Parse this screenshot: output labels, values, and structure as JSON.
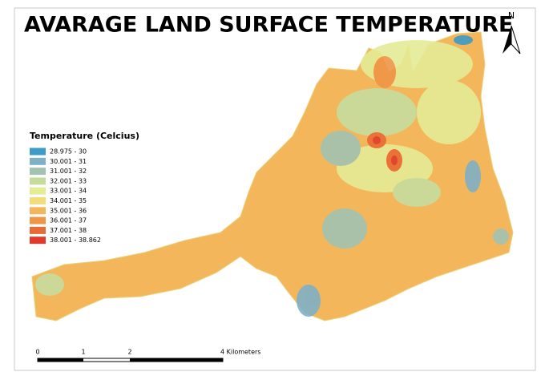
{
  "header": {
    "title": "AVARAGE LAND SURFACE TEMPERATURE",
    "north": "N"
  },
  "legend": {
    "title": "Temperature (Celcius)",
    "items": [
      {
        "label": "28.975 - 30",
        "color": "#3d9bc8"
      },
      {
        "label": "30.001 - 31",
        "color": "#7fb0c6"
      },
      {
        "label": "31.001 - 32",
        "color": "#a3c3b2"
      },
      {
        "label": "32.001 - 33",
        "color": "#c6dc9f"
      },
      {
        "label": "33.001 - 34",
        "color": "#e5ec96"
      },
      {
        "label": "34.001 - 35",
        "color": "#f4dd78"
      },
      {
        "label": "35.001 - 36",
        "color": "#f4b65a"
      },
      {
        "label": "36.001 - 37",
        "color": "#ee9547"
      },
      {
        "label": "37.001 - 38",
        "color": "#e96a34"
      },
      {
        "label": "38.001 - 38.862",
        "color": "#e03a2a"
      }
    ]
  },
  "scale_bar": {
    "labels": [
      "0",
      "1",
      "2",
      "4 Kilometers"
    ]
  }
}
